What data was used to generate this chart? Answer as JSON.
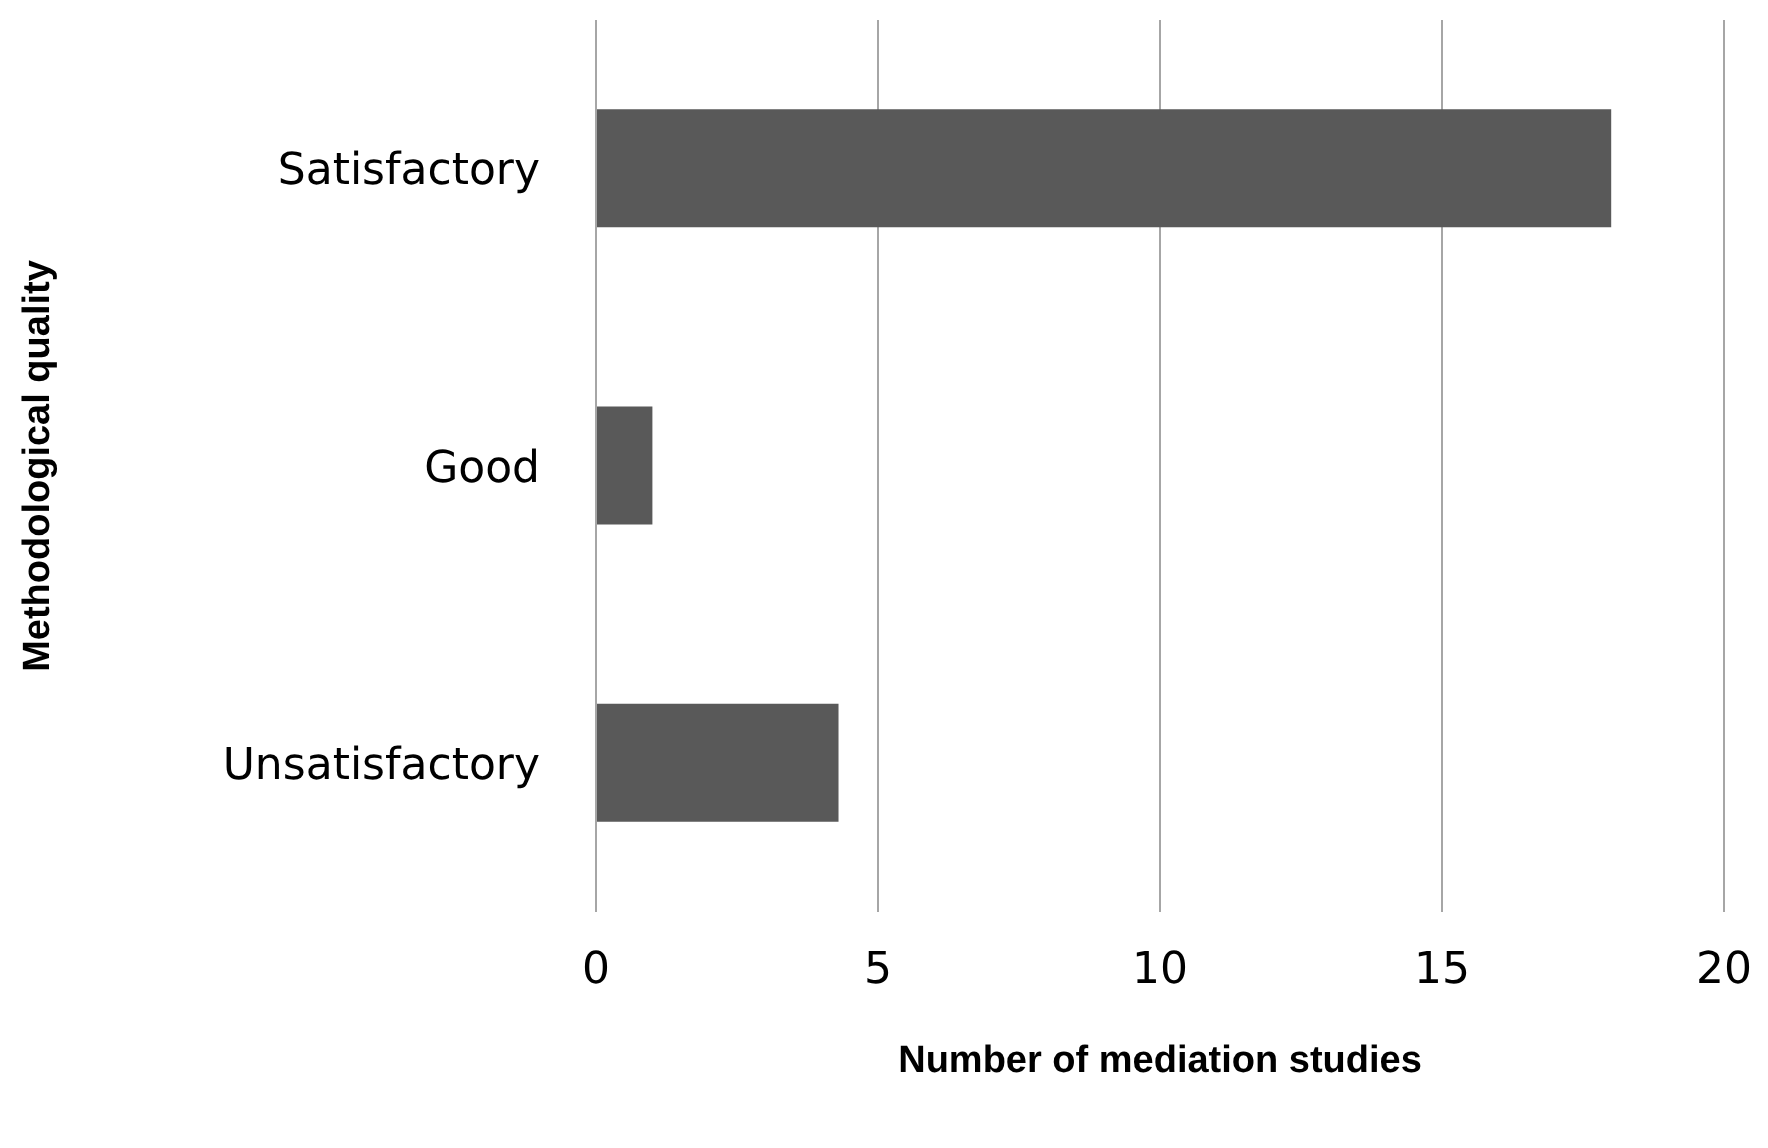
{
  "chart_data": {
    "type": "bar",
    "orientation": "horizontal",
    "xlabel": "Number of mediation studies",
    "ylabel": "Methodological quality",
    "categories": [
      "Satisfactory",
      "Good",
      "Unsatisfactory"
    ],
    "values": [
      18,
      1,
      4.3
    ],
    "color": "#595959",
    "xlim": [
      0,
      20
    ],
    "xticks": [
      0,
      5,
      10,
      15,
      20
    ],
    "grid": "x"
  }
}
